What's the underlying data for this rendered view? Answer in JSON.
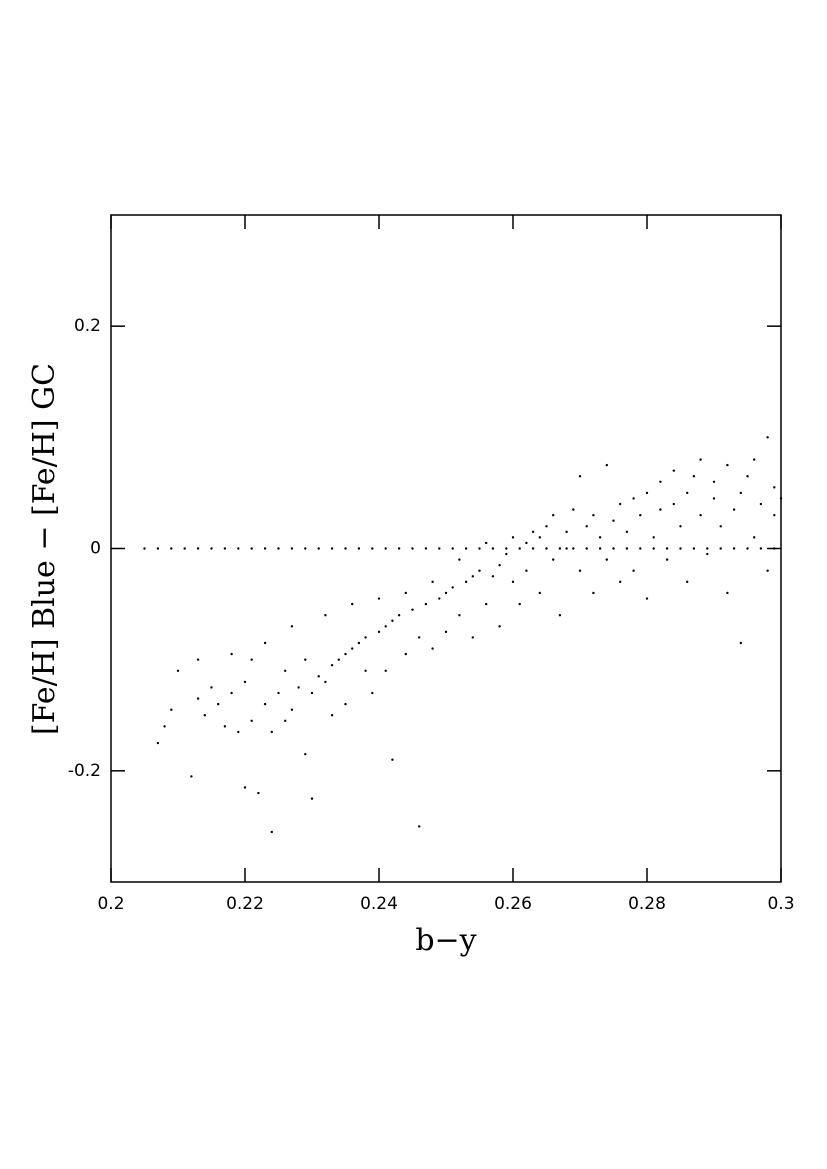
{
  "chart_data": {
    "type": "scatter",
    "xlabel": "b−y",
    "ylabel": "[Fe/H] Blue − [Fe/H] GC",
    "xlim": [
      0.2,
      0.3
    ],
    "ylim": [
      -0.3,
      0.3
    ],
    "xticks": [
      0.2,
      0.22,
      0.24,
      0.26,
      0.28,
      0.3
    ],
    "yticks": [
      -0.2,
      0,
      0.2
    ],
    "grid": false,
    "series": [
      {
        "color": "#000000",
        "x": [
          0.205,
          0.207,
          0.209,
          0.211,
          0.213,
          0.215,
          0.217,
          0.219,
          0.221,
          0.223,
          0.225,
          0.227,
          0.229,
          0.231,
          0.233,
          0.235,
          0.237,
          0.239,
          0.241,
          0.243,
          0.245,
          0.247,
          0.249,
          0.251,
          0.253,
          0.255,
          0.257,
          0.259,
          0.261,
          0.263,
          0.265,
          0.267,
          0.269,
          0.271,
          0.273,
          0.275,
          0.277,
          0.279,
          0.281,
          0.283,
          0.285,
          0.287,
          0.289,
          0.291,
          0.293,
          0.295,
          0.297,
          0.299
        ],
        "values": [
          0,
          0,
          0,
          0,
          0,
          0,
          0,
          0,
          0,
          0,
          0,
          0,
          0,
          0,
          0,
          0,
          0,
          0,
          0,
          0,
          0,
          0,
          0,
          0,
          0,
          0,
          0,
          0,
          0,
          0,
          0,
          0,
          0,
          0,
          0,
          0,
          0,
          0,
          0,
          0,
          0,
          0,
          0,
          0,
          0,
          0,
          0,
          0
        ]
      },
      {
        "color": "#000000",
        "x": [
          0.207,
          0.208,
          0.209,
          0.21,
          0.212,
          0.213,
          0.213,
          0.214,
          0.215,
          0.216,
          0.217,
          0.218,
          0.218,
          0.219,
          0.22,
          0.22,
          0.221,
          0.221,
          0.222,
          0.223,
          0.223,
          0.224,
          0.224,
          0.225,
          0.226,
          0.226,
          0.227,
          0.227,
          0.228,
          0.229,
          0.229,
          0.23,
          0.23,
          0.231,
          0.232,
          0.232,
          0.233,
          0.233,
          0.234,
          0.235,
          0.235,
          0.236,
          0.236,
          0.237,
          0.238,
          0.238,
          0.239,
          0.24,
          0.24,
          0.241,
          0.241,
          0.242,
          0.242,
          0.243,
          0.244,
          0.244,
          0.245,
          0.246,
          0.246,
          0.247,
          0.248,
          0.248,
          0.249,
          0.25,
          0.25,
          0.251,
          0.252,
          0.252,
          0.253,
          0.254,
          0.254,
          0.255,
          0.256,
          0.256,
          0.257,
          0.258,
          0.258,
          0.259,
          0.26,
          0.26,
          0.261,
          0.262,
          0.262,
          0.263,
          0.264,
          0.264,
          0.265,
          0.266,
          0.266,
          0.267,
          0.268,
          0.268,
          0.269,
          0.27,
          0.27,
          0.271,
          0.272,
          0.272,
          0.273,
          0.274,
          0.274,
          0.275,
          0.276,
          0.276,
          0.277,
          0.278,
          0.278,
          0.279,
          0.28,
          0.28,
          0.281,
          0.282,
          0.282,
          0.283,
          0.284,
          0.284,
          0.285,
          0.286,
          0.286,
          0.287,
          0.288,
          0.288,
          0.289,
          0.29,
          0.29,
          0.291,
          0.292,
          0.292,
          0.293,
          0.294,
          0.294,
          0.295,
          0.296,
          0.296,
          0.297,
          0.298,
          0.298,
          0.299,
          0.299,
          0.3
        ],
        "values": [
          -0.175,
          -0.16,
          -0.145,
          -0.11,
          -0.205,
          -0.135,
          -0.1,
          -0.15,
          -0.125,
          -0.14,
          -0.16,
          -0.095,
          -0.13,
          -0.165,
          -0.215,
          -0.12,
          -0.155,
          -0.1,
          -0.22,
          -0.14,
          -0.085,
          -0.165,
          -0.255,
          -0.13,
          -0.11,
          -0.155,
          -0.145,
          -0.07,
          -0.125,
          -0.185,
          -0.1,
          -0.13,
          -0.225,
          -0.115,
          -0.12,
          -0.06,
          -0.105,
          -0.15,
          -0.1,
          -0.095,
          -0.14,
          -0.09,
          -0.05,
          -0.085,
          -0.11,
          -0.08,
          -0.13,
          -0.075,
          -0.045,
          -0.07,
          -0.11,
          -0.065,
          -0.19,
          -0.06,
          -0.095,
          -0.04,
          -0.055,
          -0.08,
          -0.25,
          -0.05,
          -0.03,
          -0.09,
          -0.045,
          -0.04,
          -0.075,
          -0.035,
          -0.06,
          -0.01,
          -0.03,
          -0.08,
          -0.025,
          -0.02,
          -0.05,
          0.005,
          -0.025,
          -0.07,
          -0.015,
          -0.005,
          -0.03,
          0.01,
          -0.05,
          0.005,
          -0.02,
          0.015,
          -0.04,
          0.01,
          0.02,
          -0.01,
          0.03,
          -0.06,
          0.015,
          0,
          0.035,
          -0.02,
          0.065,
          0.02,
          -0.04,
          0.03,
          0.01,
          0.075,
          -0.01,
          0.025,
          0.04,
          -0.03,
          0.015,
          0.045,
          -0.02,
          0.03,
          0.05,
          -0.045,
          0.01,
          0.06,
          0.035,
          -0.01,
          0.04,
          0.07,
          0.02,
          0.05,
          -0.03,
          0.065,
          0.03,
          0.08,
          -0.005,
          0.045,
          0.06,
          0.02,
          0.075,
          -0.04,
          0.035,
          0.05,
          -0.085,
          0.065,
          0.01,
          0.08,
          0.04,
          0.1,
          -0.02,
          0.055,
          0.03,
          0.045
        ]
      }
    ]
  }
}
